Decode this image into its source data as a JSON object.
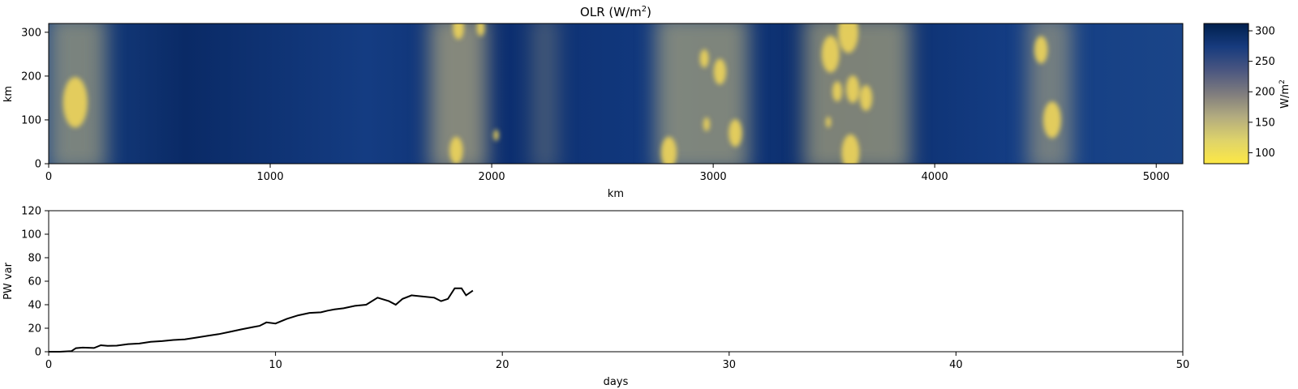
{
  "chart_data": [
    {
      "type": "heatmap",
      "title_base": "OLR (W/m",
      "title_sup": "2",
      "title_end": ")",
      "xlabel": "km",
      "ylabel": "km",
      "xlim": [
        0,
        5120
      ],
      "ylim": [
        0,
        320
      ],
      "xticks": [
        0,
        1000,
        2000,
        3000,
        4000,
        5000
      ],
      "yticks": [
        0,
        100,
        200,
        300
      ],
      "colorbar": {
        "label_base": "W/m",
        "label_sup": "2",
        "range": [
          82,
          312
        ],
        "ticks": [
          100,
          150,
          200,
          250,
          300
        ],
        "colors": [
          "#fde845",
          "#ded36a",
          "#b3ac7f",
          "#7f7c7e",
          "#4a5680",
          "#173b7e",
          "#00204d"
        ]
      },
      "cloud_bands": [
        {
          "x_center": 130,
          "width": 260,
          "intensity": 0.8
        },
        {
          "x_center": 1850,
          "width": 260,
          "intensity": 0.9
        },
        {
          "x_center": 2240,
          "width": 120,
          "intensity": 0.4
        },
        {
          "x_center": 2950,
          "width": 420,
          "intensity": 0.85
        },
        {
          "x_center": 3650,
          "width": 480,
          "intensity": 0.85
        },
        {
          "x_center": 4520,
          "width": 200,
          "intensity": 0.75
        }
      ],
      "convective_cells": [
        {
          "x": 120,
          "y": 140,
          "r": 55
        },
        {
          "x": 1840,
          "y": 30,
          "r": 30
        },
        {
          "x": 1850,
          "y": 310,
          "r": 25
        },
        {
          "x": 1950,
          "y": 310,
          "r": 18
        },
        {
          "x": 2020,
          "y": 65,
          "r": 12
        },
        {
          "x": 2800,
          "y": 25,
          "r": 35
        },
        {
          "x": 2960,
          "y": 240,
          "r": 20
        },
        {
          "x": 3030,
          "y": 210,
          "r": 28
        },
        {
          "x": 2970,
          "y": 90,
          "r": 15
        },
        {
          "x": 3100,
          "y": 70,
          "r": 30
        },
        {
          "x": 3530,
          "y": 250,
          "r": 40
        },
        {
          "x": 3610,
          "y": 300,
          "r": 45
        },
        {
          "x": 3560,
          "y": 165,
          "r": 22
        },
        {
          "x": 3630,
          "y": 170,
          "r": 30
        },
        {
          "x": 3690,
          "y": 150,
          "r": 28
        },
        {
          "x": 3620,
          "y": 25,
          "r": 40
        },
        {
          "x": 3520,
          "y": 95,
          "r": 12
        },
        {
          "x": 4480,
          "y": 260,
          "r": 30
        },
        {
          "x": 4530,
          "y": 100,
          "r": 40
        }
      ]
    },
    {
      "type": "line",
      "xlabel": "days",
      "ylabel": "PW var",
      "xlim": [
        0,
        50
      ],
      "ylim": [
        0,
        120
      ],
      "xticks": [
        0,
        10,
        20,
        30,
        40,
        50
      ],
      "yticks": [
        0,
        20,
        40,
        60,
        80,
        100,
        120
      ],
      "color": "#000000",
      "x": [
        0,
        0.5,
        1.0,
        1.2,
        1.5,
        2.0,
        2.3,
        2.6,
        3.0,
        3.5,
        4.0,
        4.5,
        5.0,
        5.5,
        6.0,
        6.5,
        7.0,
        7.5,
        8.0,
        8.5,
        9.0,
        9.3,
        9.6,
        10.0,
        10.5,
        11.0,
        11.5,
        12.0,
        12.3,
        12.6,
        13.0,
        13.5,
        14.0,
        14.5,
        15.0,
        15.3,
        15.6,
        16.0,
        16.5,
        17.0,
        17.3,
        17.6,
        17.9,
        18.2,
        18.4,
        18.7
      ],
      "y": [
        0,
        0,
        0.5,
        3,
        3.5,
        3.2,
        5.5,
        5,
        5.2,
        6.5,
        7,
        8.5,
        9,
        10,
        10.5,
        12,
        13.5,
        15,
        17,
        19,
        21,
        22,
        25,
        24,
        28,
        31,
        33,
        33.5,
        35,
        36,
        37,
        39,
        40,
        46,
        43,
        40,
        45,
        48,
        47,
        46,
        43,
        45,
        54,
        54,
        48,
        52
      ]
    }
  ]
}
